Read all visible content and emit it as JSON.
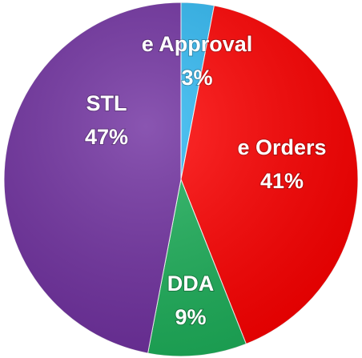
{
  "chart_data": {
    "type": "pie",
    "categories": [
      "e Approval",
      "e Orders",
      "DDA",
      "STL"
    ],
    "values": [
      3,
      41,
      9,
      47
    ],
    "value_labels": [
      "3%",
      "41%",
      "9%",
      "47%"
    ],
    "colors": [
      "#2fb8f2",
      "#ff0000",
      "#1db05a",
      "#7030a0"
    ]
  }
}
